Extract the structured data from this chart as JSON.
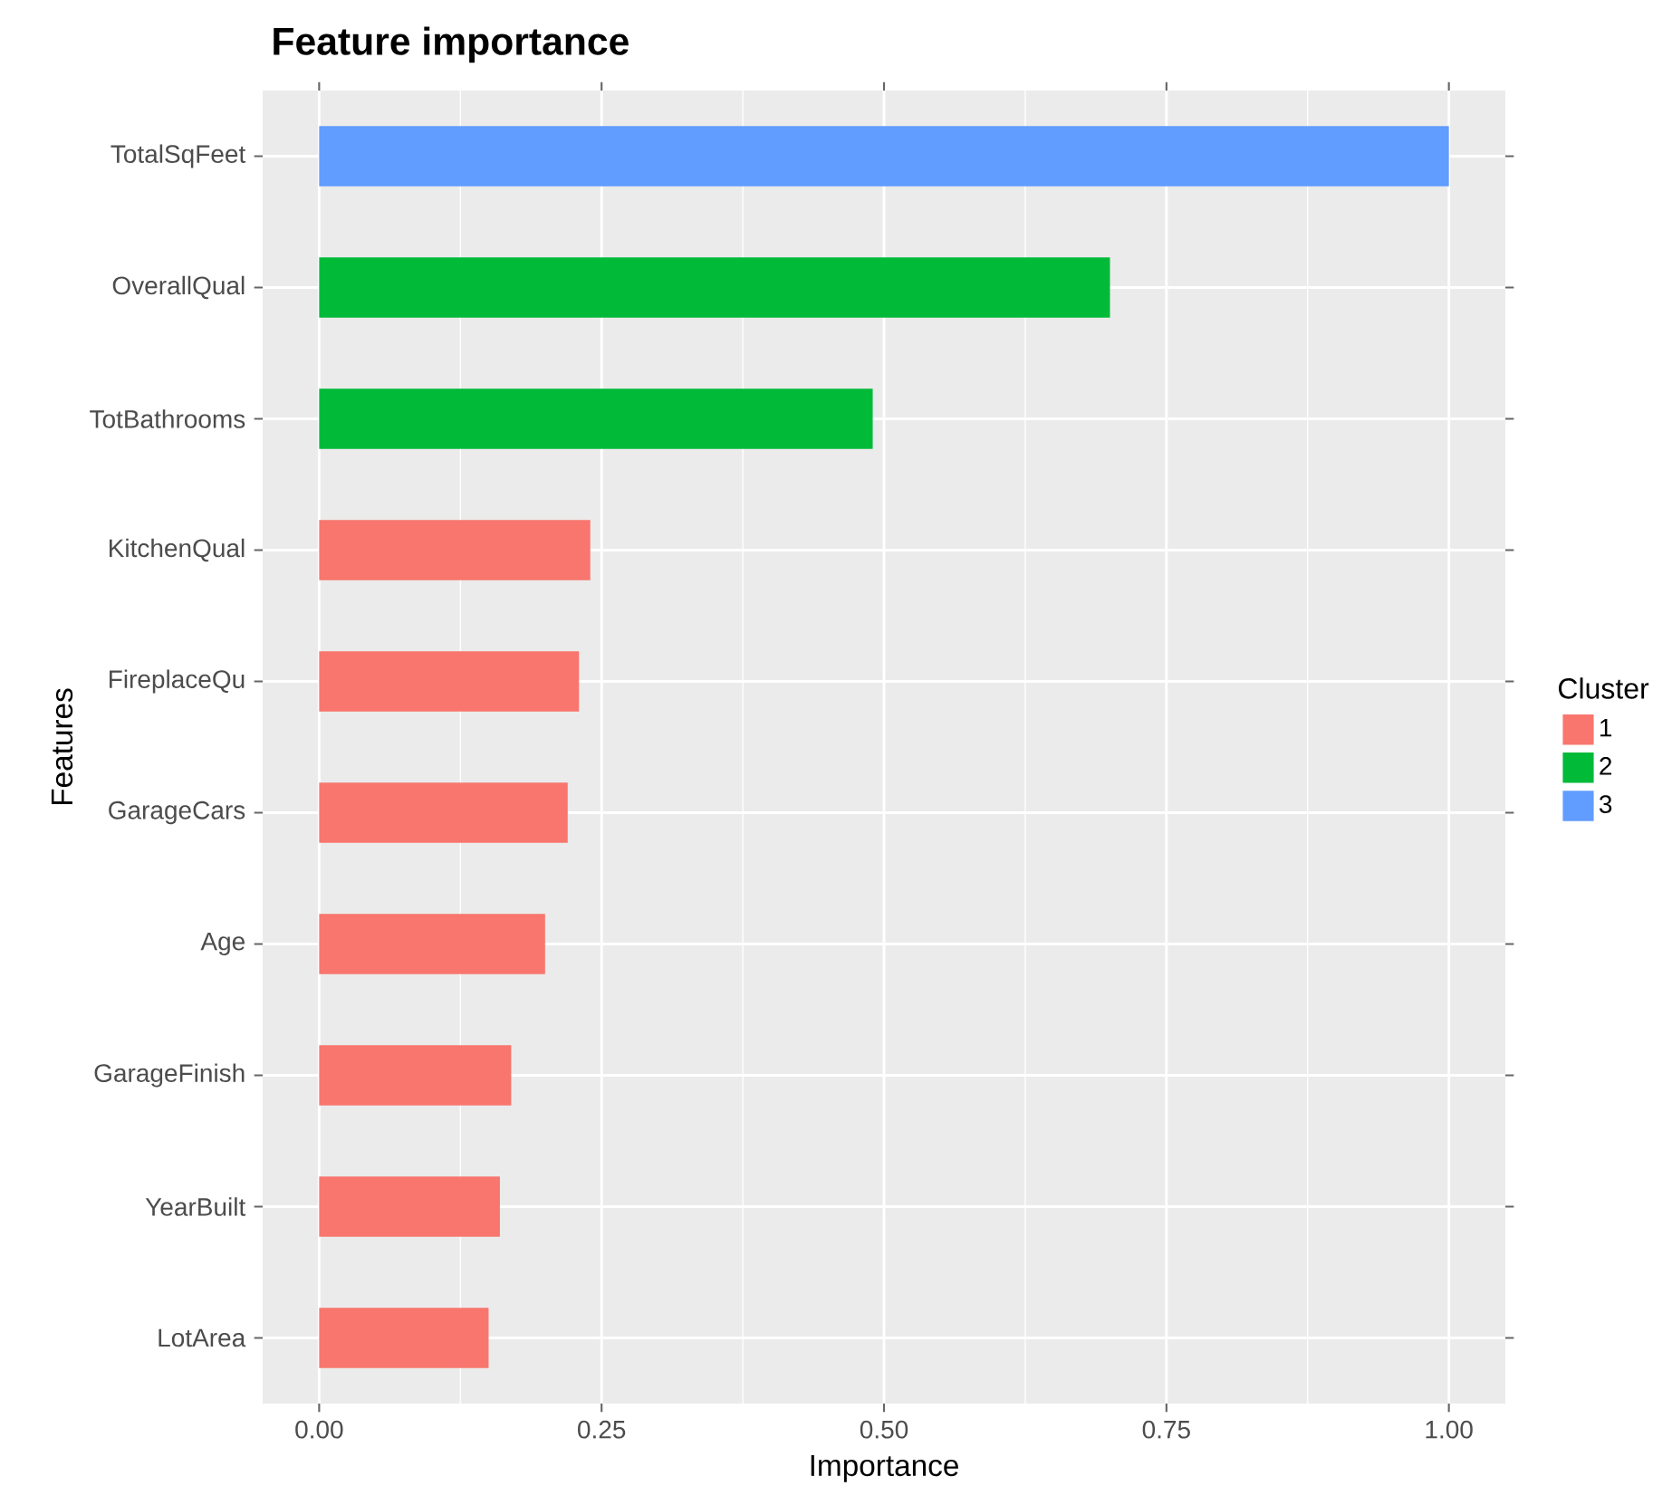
{
  "chart_data": {
    "type": "bar",
    "orientation": "horizontal",
    "title": "Feature importance",
    "xlabel": "Importance",
    "ylabel": "Features",
    "legend_title": "Cluster",
    "categories": [
      "TotalSqFeet",
      "OverallQual",
      "TotBathrooms",
      "KitchenQual",
      "FireplaceQu",
      "GarageCars",
      "Age",
      "GarageFinish",
      "YearBuilt",
      "LotArea"
    ],
    "series": [
      {
        "name": "1",
        "color": "#f8766d",
        "values": [
          null,
          null,
          null,
          0.24,
          0.23,
          0.22,
          0.2,
          0.17,
          0.16,
          0.15
        ]
      },
      {
        "name": "2",
        "color": "#00ba38",
        "values": [
          null,
          0.7,
          0.49,
          null,
          null,
          null,
          null,
          null,
          null,
          null
        ]
      },
      {
        "name": "3",
        "color": "#619cff",
        "values": [
          1.0,
          null,
          null,
          null,
          null,
          null,
          null,
          null,
          null,
          null
        ]
      }
    ],
    "xlim": [
      -0.05,
      1.05
    ],
    "xticks": [
      {
        "value": 0,
        "label": "0.00"
      },
      {
        "value": 0.25,
        "label": "0.25"
      },
      {
        "value": 0.5,
        "label": "0.50"
      },
      {
        "value": 0.75,
        "label": "0.75"
      },
      {
        "value": 1,
        "label": "1.00"
      }
    ],
    "grid": true,
    "legend": "right"
  }
}
